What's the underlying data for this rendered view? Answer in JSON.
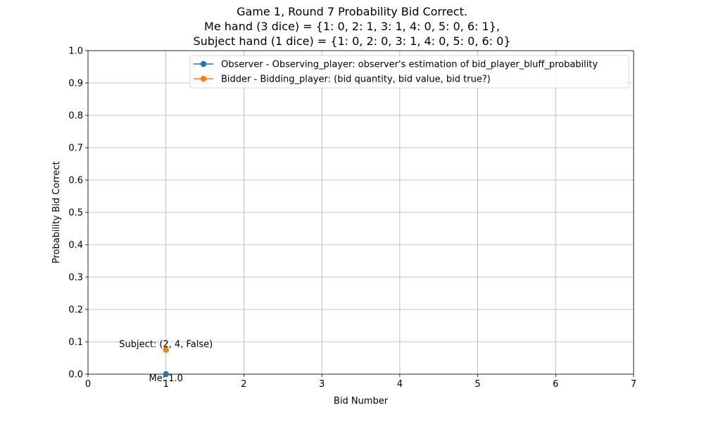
{
  "chart_data": {
    "type": "line",
    "title_lines": [
      "Game 1, Round 7 Probability Bid Correct.",
      "Me hand (3 dice) = {1: 0, 2: 1, 3: 1, 4: 0, 5: 0, 6: 1},",
      "Subject hand (1 dice) = {1: 0, 2: 0, 3: 1, 4: 0, 5: 0, 6: 0}"
    ],
    "xlabel": "Bid Number",
    "ylabel": "Probability Bid Correct",
    "xlim": [
      0,
      7
    ],
    "ylim": [
      0,
      1
    ],
    "xticks": [
      0,
      1,
      2,
      3,
      4,
      5,
      6,
      7
    ],
    "yticks": [
      0.0,
      0.1,
      0.2,
      0.3,
      0.4,
      0.5,
      0.6,
      0.7,
      0.8,
      0.9,
      1.0
    ],
    "ytick_labels": [
      "0.0",
      "0.1",
      "0.2",
      "0.3",
      "0.4",
      "0.5",
      "0.6",
      "0.7",
      "0.8",
      "0.9",
      "1.0"
    ],
    "grid": true,
    "legend_position": "top-right",
    "series": [
      {
        "name": "Observer - Observing_player: observer's estimation of bid_player_bluff_probability",
        "color": "#1f77b4",
        "x": [
          1
        ],
        "y": [
          0.0
        ],
        "annotations": [
          "Me: 1.0"
        ]
      },
      {
        "name": "Bidder -  Bidding_player: (bid quantity, bid value, bid true?)",
        "color": "#ff7f0e",
        "x": [
          1
        ],
        "y": [
          0.075
        ],
        "annotations": [
          "Subject: (2, 4, False)"
        ]
      }
    ]
  }
}
